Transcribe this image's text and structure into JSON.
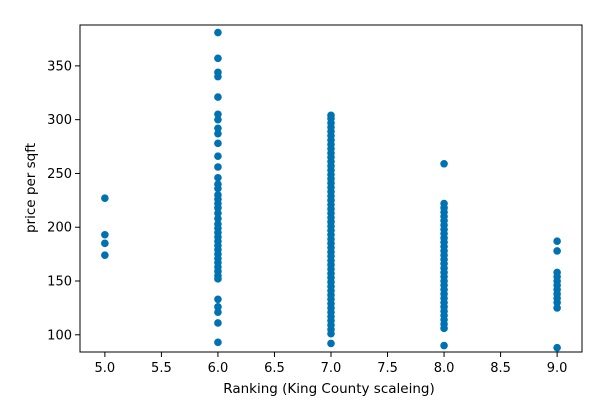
{
  "chart_data": {
    "type": "scatter",
    "title": "",
    "xlabel": "Ranking (King County scaleing)",
    "ylabel": "price per sqft",
    "xlim": [
      4.78,
      9.22
    ],
    "ylim": [
      84,
      388
    ],
    "xticks": [
      5.0,
      5.5,
      6.0,
      6.5,
      7.0,
      7.5,
      8.0,
      8.5,
      9.0
    ],
    "xtick_labels": [
      "5.0",
      "5.5",
      "6.0",
      "6.5",
      "7.0",
      "7.5",
      "8.0",
      "8.5",
      "9.0"
    ],
    "yticks": [
      100,
      150,
      200,
      250,
      300,
      350
    ],
    "ytick_labels": [
      "100",
      "150",
      "200",
      "250",
      "300",
      "350"
    ],
    "grid": false,
    "marker_color": "#0072b2",
    "series": [
      {
        "points": [
          [
            5,
            227
          ],
          [
            5,
            193
          ],
          [
            5,
            185
          ],
          [
            5,
            174
          ],
          [
            6,
            381
          ],
          [
            6,
            357
          ],
          [
            6,
            344
          ],
          [
            6,
            340
          ],
          [
            6,
            321
          ],
          [
            6,
            305
          ],
          [
            6,
            300
          ],
          [
            6,
            292
          ],
          [
            6,
            287
          ],
          [
            6,
            278
          ],
          [
            6,
            266
          ],
          [
            6,
            256
          ],
          [
            6,
            246
          ],
          [
            6,
            240
          ],
          [
            6,
            236
          ],
          [
            6,
            230
          ],
          [
            6,
            226
          ],
          [
            6,
            222
          ],
          [
            6,
            218
          ],
          [
            6,
            213
          ],
          [
            6,
            208
          ],
          [
            6,
            203
          ],
          [
            6,
            199
          ],
          [
            6,
            195
          ],
          [
            6,
            191
          ],
          [
            6,
            187
          ],
          [
            6,
            183
          ],
          [
            6,
            179
          ],
          [
            6,
            175
          ],
          [
            6,
            171
          ],
          [
            6,
            167
          ],
          [
            6,
            163
          ],
          [
            6,
            159
          ],
          [
            6,
            155
          ],
          [
            6,
            152
          ],
          [
            6,
            133
          ],
          [
            6,
            126
          ],
          [
            6,
            121
          ],
          [
            6,
            111
          ],
          [
            6,
            93
          ],
          [
            7,
            304
          ],
          [
            7,
            301
          ],
          [
            7,
            297
          ],
          [
            7,
            293
          ],
          [
            7,
            289
          ],
          [
            7,
            285
          ],
          [
            7,
            281
          ],
          [
            7,
            277
          ],
          [
            7,
            273
          ],
          [
            7,
            269
          ],
          [
            7,
            265
          ],
          [
            7,
            261
          ],
          [
            7,
            257
          ],
          [
            7,
            253
          ],
          [
            7,
            249
          ],
          [
            7,
            245
          ],
          [
            7,
            241
          ],
          [
            7,
            237
          ],
          [
            7,
            233
          ],
          [
            7,
            229
          ],
          [
            7,
            225
          ],
          [
            7,
            221
          ],
          [
            7,
            217
          ],
          [
            7,
            213
          ],
          [
            7,
            209
          ],
          [
            7,
            205
          ],
          [
            7,
            201
          ],
          [
            7,
            197
          ],
          [
            7,
            193
          ],
          [
            7,
            189
          ],
          [
            7,
            185
          ],
          [
            7,
            181
          ],
          [
            7,
            177
          ],
          [
            7,
            173
          ],
          [
            7,
            169
          ],
          [
            7,
            165
          ],
          [
            7,
            161
          ],
          [
            7,
            157
          ],
          [
            7,
            153
          ],
          [
            7,
            149
          ],
          [
            7,
            145
          ],
          [
            7,
            141
          ],
          [
            7,
            137
          ],
          [
            7,
            133
          ],
          [
            7,
            129
          ],
          [
            7,
            125
          ],
          [
            7,
            121
          ],
          [
            7,
            117
          ],
          [
            7,
            113
          ],
          [
            7,
            109
          ],
          [
            7,
            105
          ],
          [
            7,
            101
          ],
          [
            7,
            92
          ],
          [
            8,
            259
          ],
          [
            8,
            222
          ],
          [
            8,
            218
          ],
          [
            8,
            214
          ],
          [
            8,
            210
          ],
          [
            8,
            206
          ],
          [
            8,
            202
          ],
          [
            8,
            198
          ],
          [
            8,
            194
          ],
          [
            8,
            190
          ],
          [
            8,
            186
          ],
          [
            8,
            182
          ],
          [
            8,
            178
          ],
          [
            8,
            174
          ],
          [
            8,
            170
          ],
          [
            8,
            166
          ],
          [
            8,
            162
          ],
          [
            8,
            158
          ],
          [
            8,
            154
          ],
          [
            8,
            150
          ],
          [
            8,
            146
          ],
          [
            8,
            142
          ],
          [
            8,
            138
          ],
          [
            8,
            134
          ],
          [
            8,
            130
          ],
          [
            8,
            126
          ],
          [
            8,
            122
          ],
          [
            8,
            118
          ],
          [
            8,
            114
          ],
          [
            8,
            110
          ],
          [
            8,
            106
          ],
          [
            8,
            90
          ],
          [
            9,
            187
          ],
          [
            9,
            178
          ],
          [
            9,
            158
          ],
          [
            9,
            154
          ],
          [
            9,
            150
          ],
          [
            9,
            146
          ],
          [
            9,
            142
          ],
          [
            9,
            138
          ],
          [
            9,
            134
          ],
          [
            9,
            130
          ],
          [
            9,
            125
          ],
          [
            9,
            88
          ]
        ]
      }
    ]
  }
}
